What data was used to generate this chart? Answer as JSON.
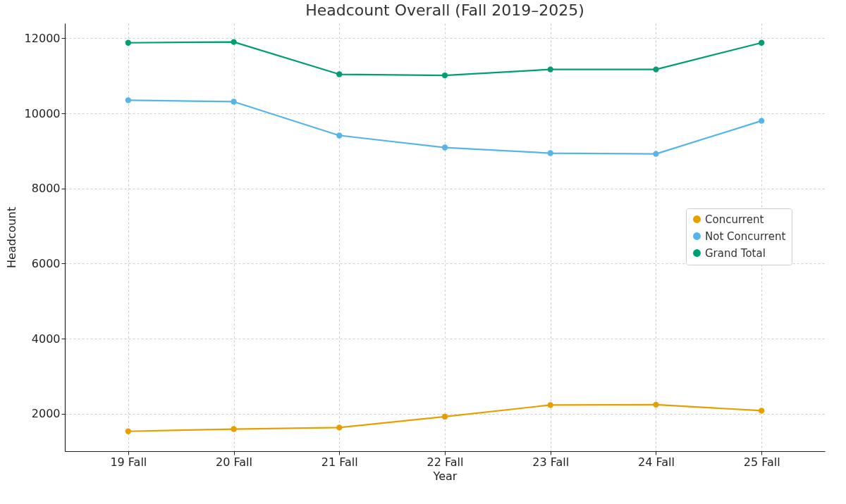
{
  "chart_data": {
    "type": "line",
    "title": "Headcount Overall (Fall 2019–2025)",
    "xlabel": "Year",
    "ylabel": "Headcount",
    "categories": [
      "19 Fall",
      "20 Fall",
      "21 Fall",
      "22 Fall",
      "23 Fall",
      "24 Fall",
      "25 Fall"
    ],
    "series": [
      {
        "name": "Concurrent",
        "color": "#e69f00",
        "values": [
          1530,
          1590,
          1630,
          1920,
          2230,
          2240,
          2080
        ]
      },
      {
        "name": "Not Concurrent",
        "color": "#56b4e9",
        "values": [
          10350,
          10310,
          9410,
          9090,
          8940,
          8920,
          9800
        ]
      },
      {
        "name": "Grand Total",
        "color": "#009e73",
        "values": [
          11880,
          11900,
          11040,
          11010,
          11170,
          11170,
          11880
        ]
      }
    ],
    "ylim": [
      1000,
      12400
    ],
    "yticks": [
      2000,
      4000,
      6000,
      8000,
      10000,
      12000
    ],
    "grid": true,
    "legend": "right",
    "marker": "circle",
    "line_style": "solid"
  }
}
